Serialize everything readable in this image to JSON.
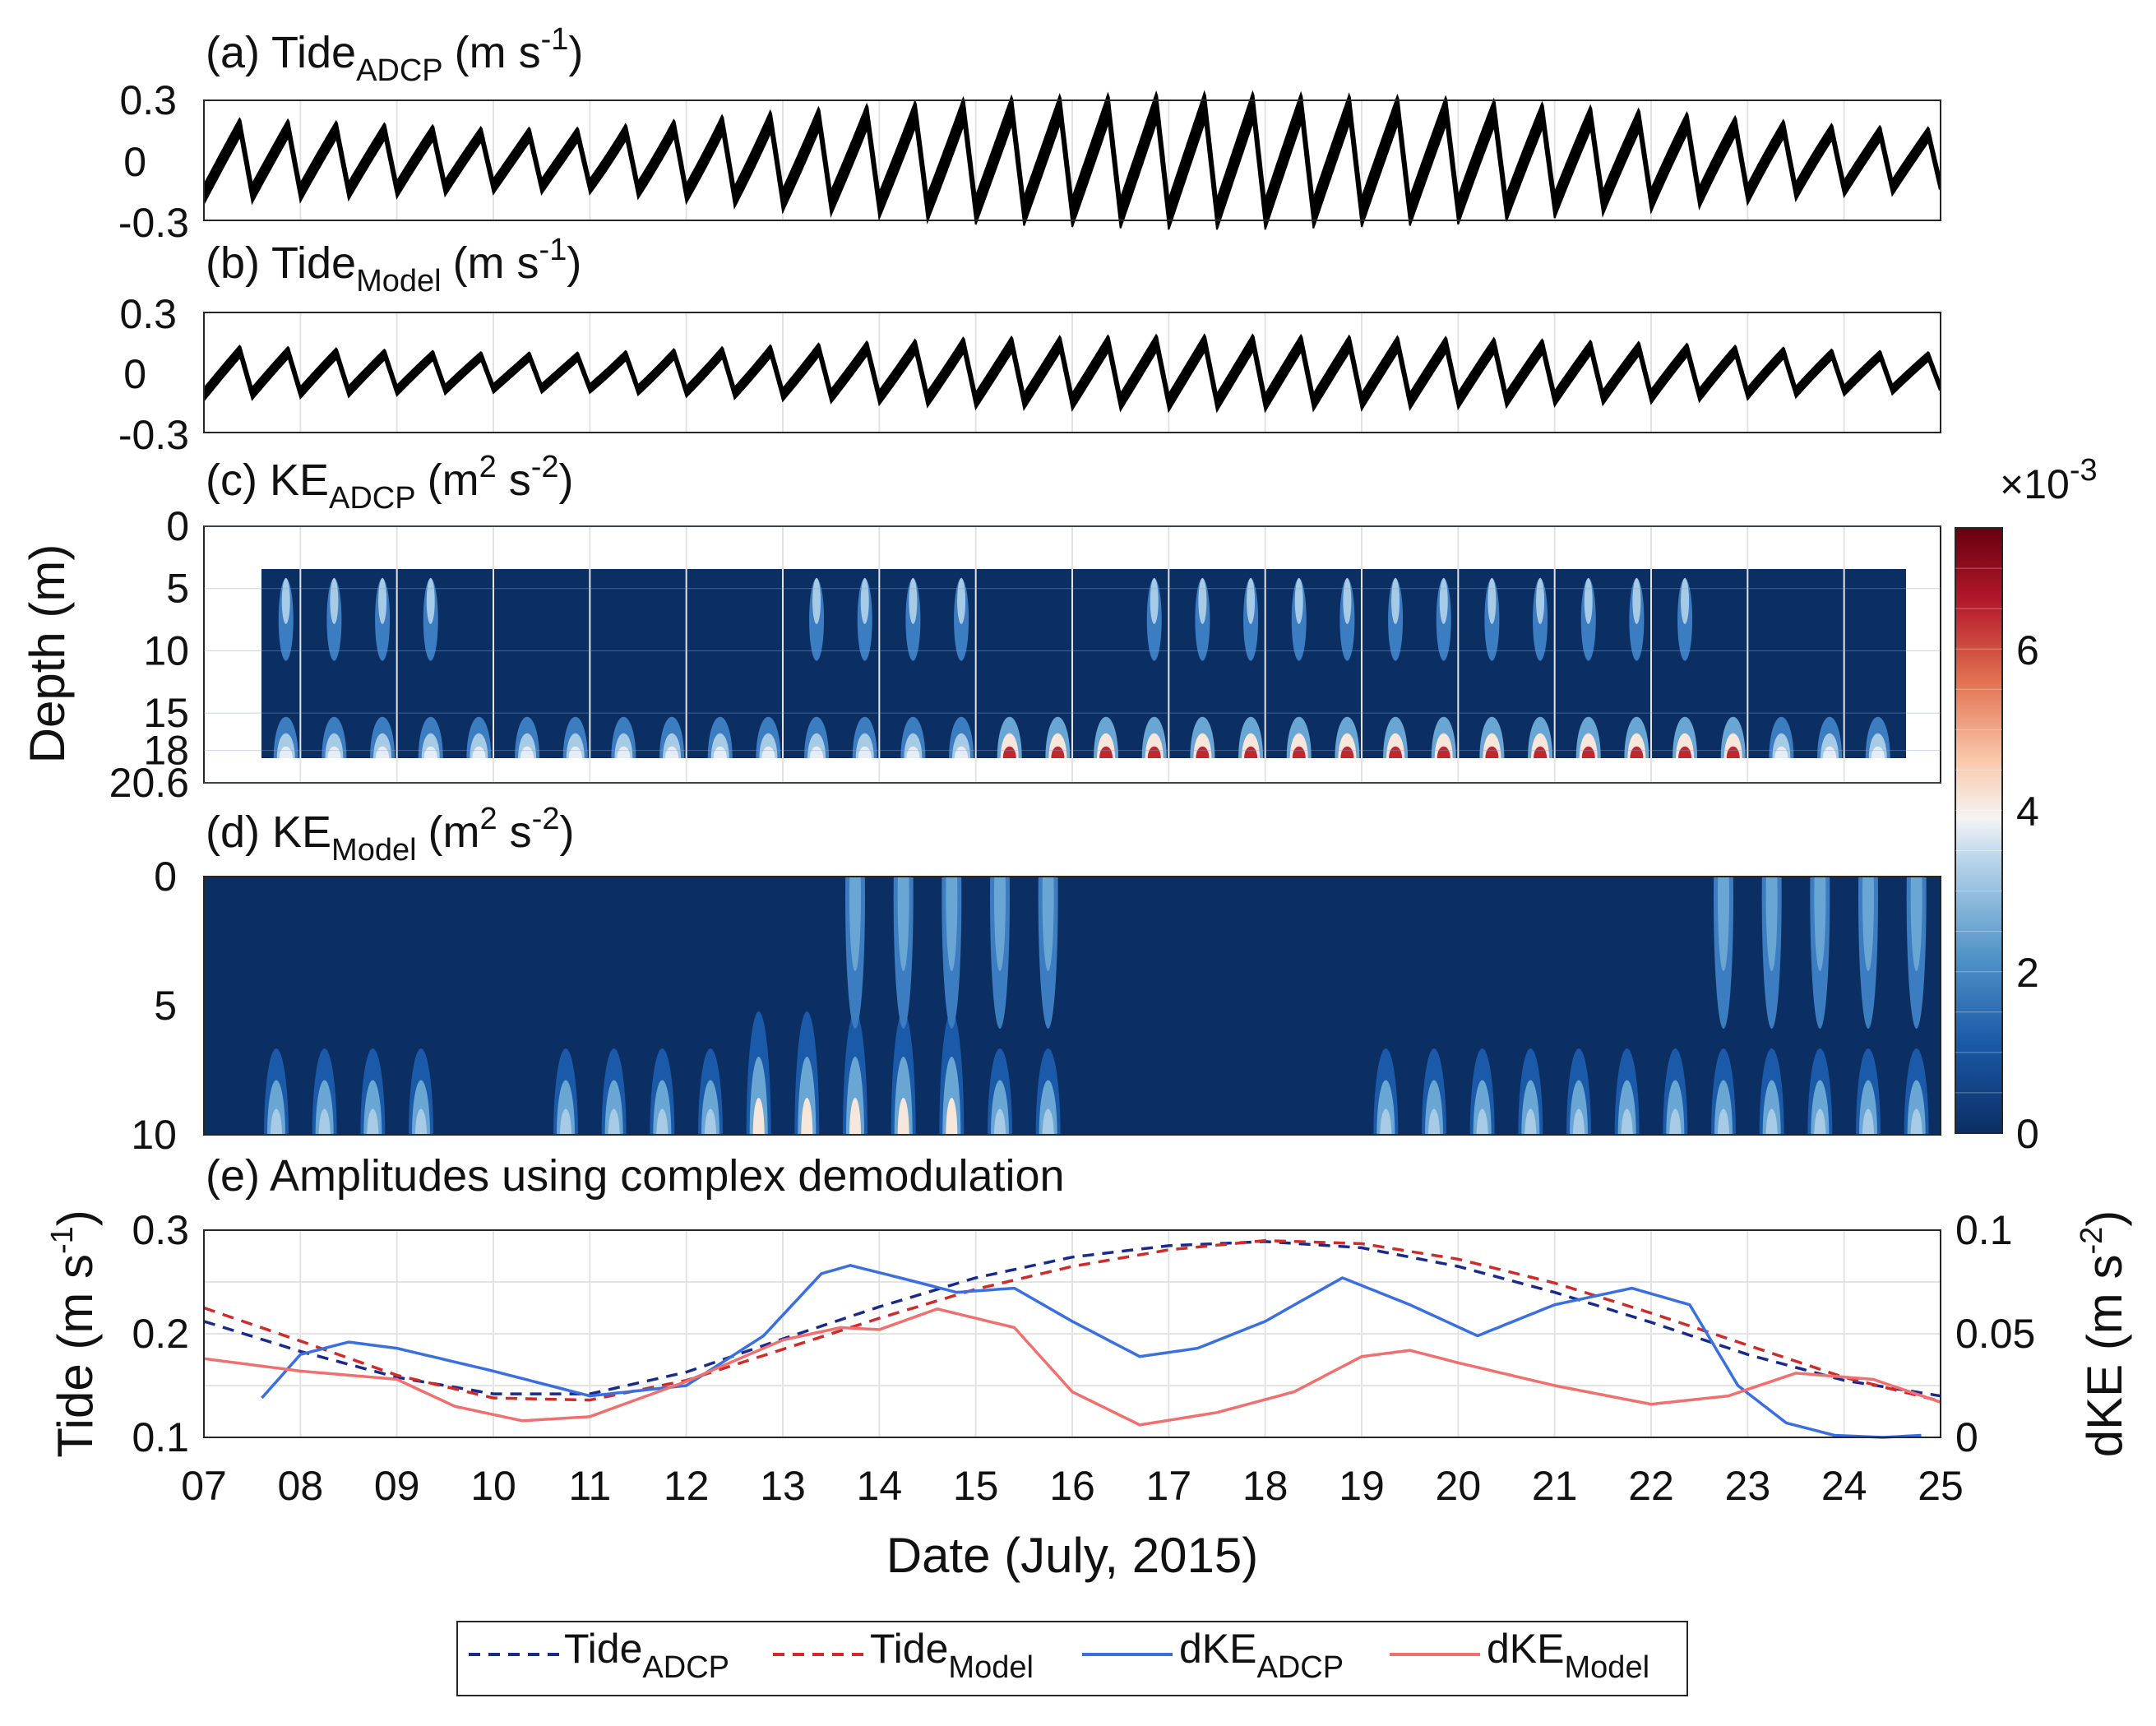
{
  "chart_data": [
    {
      "id": "a",
      "type": "line",
      "title": "(a) Tide",
      "title_sub": "ADCP",
      "title_unit": "(m s",
      "title_sup": "-1",
      "title_end": ")",
      "ylim": [
        -0.3,
        0.3
      ],
      "yticks": [
        "0.3",
        "0",
        "-0.3"
      ],
      "xlim": [
        7,
        25
      ],
      "series_description": "tidal velocity oscillation (semidiurnal, 2 cycles/day)",
      "amplitude_envelope": {
        "x": [
          7,
          8,
          10,
          11,
          13,
          15,
          17,
          18,
          20,
          22,
          24,
          25
        ],
        "y": [
          0.17,
          0.16,
          0.13,
          0.13,
          0.2,
          0.25,
          0.27,
          0.27,
          0.25,
          0.2,
          0.14,
          0.13
        ]
      },
      "color": "#000000"
    },
    {
      "id": "b",
      "type": "line",
      "title": "(b) Tide",
      "title_sub": "Model",
      "title_unit": "(m s",
      "title_sup": "-1",
      "title_end": ")",
      "ylim": [
        -0.3,
        0.3
      ],
      "yticks": [
        "0.3",
        "0",
        "-0.3"
      ],
      "xlim": [
        7,
        25
      ],
      "amplitude_envelope": {
        "x": [
          7,
          8,
          10,
          11,
          13,
          15,
          17,
          18,
          20,
          22,
          24,
          25
        ],
        "y": [
          0.11,
          0.1,
          0.08,
          0.08,
          0.11,
          0.14,
          0.15,
          0.15,
          0.14,
          0.12,
          0.09,
          0.08
        ]
      },
      "color": "#000000"
    },
    {
      "id": "c",
      "type": "heatmap",
      "title": "(c) KE",
      "title_sub": "ADCP",
      "title_unit": "(m",
      "title_sup": "2",
      "title_mid": " s",
      "title_sup2": "-2",
      "title_end": ")",
      "ylabel": "Depth (m)",
      "ylim": [
        0,
        20.6
      ],
      "yticks": [
        0,
        5,
        10,
        15,
        18,
        20.6
      ],
      "ytick_labels": [
        "0",
        "5",
        "10",
        "15",
        "18",
        "20.6"
      ],
      "data_depth_range": [
        3.5,
        18.6
      ],
      "data_x_range": [
        7.6,
        24.8
      ],
      "xlim": [
        7,
        25
      ],
      "colorbar": {
        "min": 0,
        "max": 7.5,
        "scale_label": "×10",
        "scale_exp": "-3",
        "ticks": [
          "0",
          "2",
          "4",
          "6"
        ]
      }
    },
    {
      "id": "d",
      "type": "heatmap",
      "title": "(d) KE",
      "title_sub": "Model",
      "title_unit": "(m",
      "title_sup": "2",
      "title_mid": " s",
      "title_sup2": "-2",
      "title_end": ")",
      "ylim": [
        0,
        10
      ],
      "yticks": [
        0,
        5,
        10
      ],
      "ytick_labels": [
        "0",
        "5",
        "10"
      ],
      "xlim": [
        7,
        25
      ]
    },
    {
      "id": "e",
      "type": "line",
      "title": "(e) Amplitudes using complex demodulation",
      "xlabel": "Date (July, 2015)",
      "ylabel_left": "Tide (m s",
      "ylabel_left_sup": "-1",
      "ylabel_left_end": ")",
      "ylabel_right": "dKE (m s",
      "ylabel_right_sup": "-2",
      "ylabel_right_end": ")",
      "ylim_left": [
        0.1,
        0.3
      ],
      "ylim_right": [
        0,
        0.1
      ],
      "yticks_left": [
        "0.1",
        "0.2",
        "0.3"
      ],
      "yticks_right": [
        "0",
        "0.05",
        "0.1"
      ],
      "xlim": [
        7,
        25
      ],
      "xtick_labels": [
        "07",
        "08",
        "09",
        "10",
        "11",
        "12",
        "13",
        "14",
        "15",
        "16",
        "17",
        "18",
        "19",
        "20",
        "21",
        "22",
        "23",
        "24",
        "25"
      ],
      "series": [
        {
          "name": "Tide",
          "sub": "ADCP",
          "axis": "left",
          "style": "dashed",
          "color": "#1a2a8c",
          "x": [
            7,
            8,
            9,
            10,
            11,
            12,
            13,
            14,
            15,
            16,
            17,
            18,
            19,
            20,
            21,
            22,
            23,
            24,
            25
          ],
          "y": [
            0.212,
            0.183,
            0.158,
            0.142,
            0.142,
            0.163,
            0.195,
            0.226,
            0.254,
            0.274,
            0.285,
            0.289,
            0.283,
            0.265,
            0.24,
            0.211,
            0.18,
            0.155,
            0.14
          ]
        },
        {
          "name": "Tide",
          "sub": "Model",
          "axis": "left",
          "style": "dashed",
          "color": "#d02b2b",
          "x": [
            7,
            8,
            9,
            10,
            11,
            12,
            13,
            14,
            15,
            16,
            17,
            18,
            19,
            20,
            21,
            22,
            23,
            24,
            25
          ],
          "y": [
            0.225,
            0.193,
            0.16,
            0.138,
            0.136,
            0.155,
            0.185,
            0.215,
            0.243,
            0.265,
            0.281,
            0.29,
            0.287,
            0.272,
            0.249,
            0.22,
            0.189,
            0.158,
            0.135
          ]
        },
        {
          "name": "dKE",
          "sub": "ADCP",
          "axis": "right",
          "style": "solid",
          "color": "#3a6fe0",
          "x": [
            7.6,
            8.0,
            8.5,
            9.0,
            10.0,
            11.0,
            12.0,
            12.8,
            13.4,
            13.7,
            14.3,
            14.8,
            15.4,
            16.0,
            16.7,
            17.3,
            18.0,
            18.8,
            19.5,
            20.2,
            21.0,
            21.8,
            22.4,
            22.9,
            23.4,
            23.9,
            24.4,
            24.8
          ],
          "y": [
            0.019,
            0.04,
            0.046,
            0.043,
            0.032,
            0.02,
            0.025,
            0.049,
            0.079,
            0.083,
            0.076,
            0.07,
            0.072,
            0.056,
            0.039,
            0.043,
            0.056,
            0.077,
            0.064,
            0.049,
            0.064,
            0.072,
            0.064,
            0.025,
            0.007,
            0.001,
            0.0,
            0.001
          ]
        },
        {
          "name": "dKE",
          "sub": "Model",
          "axis": "right",
          "style": "solid",
          "color": "#f07070",
          "x": [
            7.0,
            8.0,
            9.0,
            9.6,
            10.3,
            11.0,
            12.0,
            13.0,
            13.6,
            14.0,
            14.6,
            15.4,
            16.0,
            16.7,
            17.5,
            18.3,
            19.0,
            19.5,
            20.0,
            21.0,
            22.0,
            22.8,
            23.5,
            24.3,
            25.0
          ],
          "y": [
            0.038,
            0.032,
            0.028,
            0.015,
            0.008,
            0.01,
            0.027,
            0.047,
            0.053,
            0.052,
            0.062,
            0.053,
            0.022,
            0.006,
            0.012,
            0.022,
            0.039,
            0.042,
            0.036,
            0.025,
            0.016,
            0.02,
            0.031,
            0.028,
            0.017
          ]
        }
      ]
    }
  ],
  "legend": {
    "items": [
      {
        "name": "Tide",
        "sub": "ADCP",
        "style": "dashed",
        "color": "#1a2a8c"
      },
      {
        "name": "Tide",
        "sub": "Model",
        "style": "dashed",
        "color": "#d02b2b"
      },
      {
        "name": "dKE",
        "sub": "ADCP",
        "style": "solid",
        "color": "#3a6fe0"
      },
      {
        "name": "dKE",
        "sub": "Model",
        "style": "solid",
        "color": "#f07070"
      }
    ]
  },
  "colors": {
    "ke_low": "#0b2e63",
    "ke_high": "#67000d",
    "axis": "#262626",
    "grid": "#e3e3e3"
  }
}
